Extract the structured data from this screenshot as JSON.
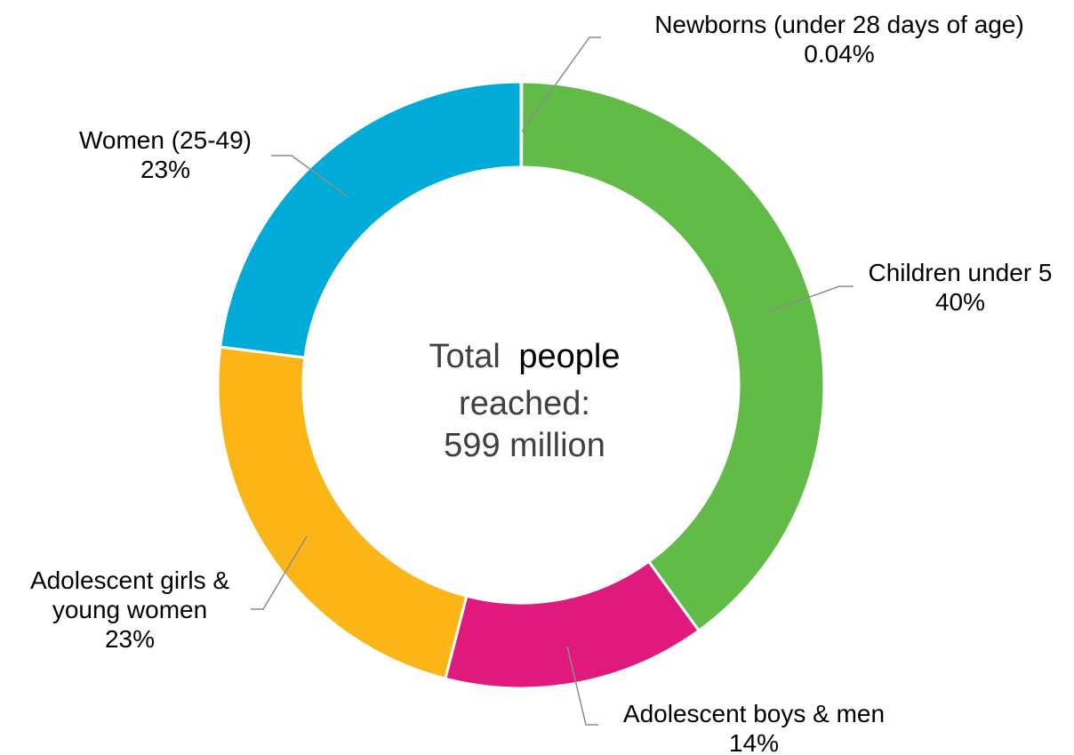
{
  "chart_data": {
    "type": "pie",
    "variant": "donut",
    "center_label": {
      "line1_part1": "Total",
      "line1_part2": "people",
      "line2": "reached:",
      "line3": "599 million"
    },
    "slices": [
      {
        "name_lines": [
          "Newborns (under 28 days of age)"
        ],
        "value": 0.04,
        "value_label": "0.04%",
        "color": "#62BB46"
      },
      {
        "name_lines": [
          "Children under 5"
        ],
        "value": 40,
        "value_label": "40%",
        "color": "#62BB46"
      },
      {
        "name_lines": [
          "Adolescent boys & men"
        ],
        "value": 14,
        "value_label": "14%",
        "color": "#E0197D"
      },
      {
        "name_lines": [
          "Adolescent girls &",
          "young women"
        ],
        "value": 23,
        "value_label": "23%",
        "color": "#FBB516"
      },
      {
        "name_lines": [
          "Women (25-49)"
        ],
        "value": 23,
        "value_label": "23%",
        "color": "#00ACD7"
      }
    ],
    "legend": "none",
    "labels": "outside with leader lines"
  }
}
